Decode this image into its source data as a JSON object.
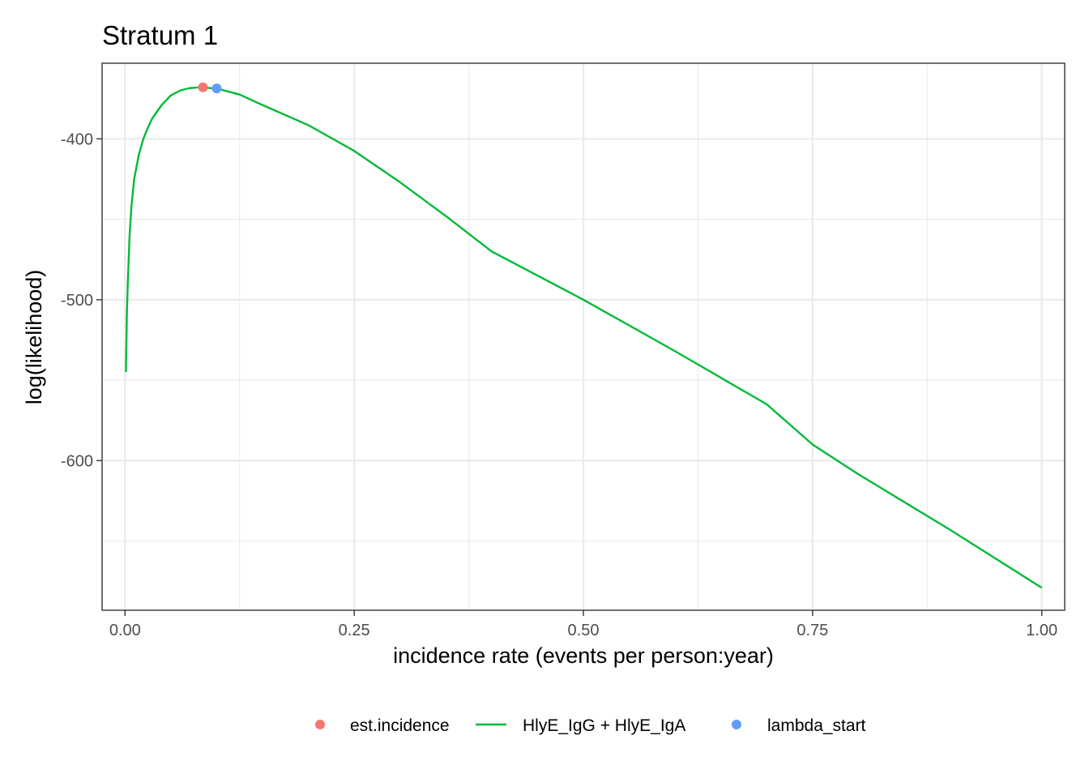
{
  "chart_data": {
    "type": "line",
    "title": "Stratum 1",
    "xlabel": "incidence rate (events per person:year)",
    "ylabel": "log(likelihood)",
    "xlim": [
      -0.025,
      1.025
    ],
    "ylim": [
      -693,
      -353
    ],
    "x_ticks": [
      0.0,
      0.25,
      0.5,
      0.75,
      1.0
    ],
    "x_tick_labels": [
      "0.00",
      "0.25",
      "0.50",
      "0.75",
      "1.00"
    ],
    "y_ticks": [
      -400,
      -500,
      -600
    ],
    "y_tick_labels": [
      "-400",
      "-500",
      "-600"
    ],
    "grid": true,
    "legend_position": "bottom",
    "series": [
      {
        "name": "HlyE_IgG + HlyE_IgA",
        "kind": "line",
        "color": "#00BA38",
        "x": [
          0.001,
          0.002,
          0.003,
          0.005,
          0.007,
          0.01,
          0.015,
          0.02,
          0.025,
          0.03,
          0.04,
          0.05,
          0.06,
          0.07,
          0.08,
          0.1,
          0.125,
          0.15,
          0.2,
          0.25,
          0.3,
          0.35,
          0.4,
          0.5,
          0.6,
          0.7,
          0.75,
          0.8,
          0.9,
          1.0
        ],
        "y": [
          -545,
          -510,
          -490,
          -460,
          -442,
          -425,
          -410,
          -400,
          -393,
          -387,
          -379,
          -373,
          -370,
          -368.5,
          -368.0,
          -368.7,
          -372.5,
          -379.0,
          -391.5,
          -407.5,
          -427.0,
          -448.0,
          -470.0,
          -500.0,
          -532.0,
          -565.0,
          -590.0,
          -608.5,
          -643.0,
          -679.0
        ]
      },
      {
        "name": "est.incidence",
        "kind": "point",
        "color": "#F8766D",
        "x": [
          0.085
        ],
        "y": [
          -368.0
        ]
      },
      {
        "name": "lambda_start",
        "kind": "point",
        "color": "#619CFF",
        "x": [
          0.1
        ],
        "y": [
          -368.7
        ]
      }
    ],
    "legend": [
      {
        "label": "est.incidence",
        "symbol": "point",
        "color": "#F8766D"
      },
      {
        "label": "HlyE_IgG + HlyE_IgA",
        "symbol": "line",
        "color": "#00BA38"
      },
      {
        "label": "lambda_start",
        "symbol": "point",
        "color": "#619CFF"
      }
    ]
  }
}
